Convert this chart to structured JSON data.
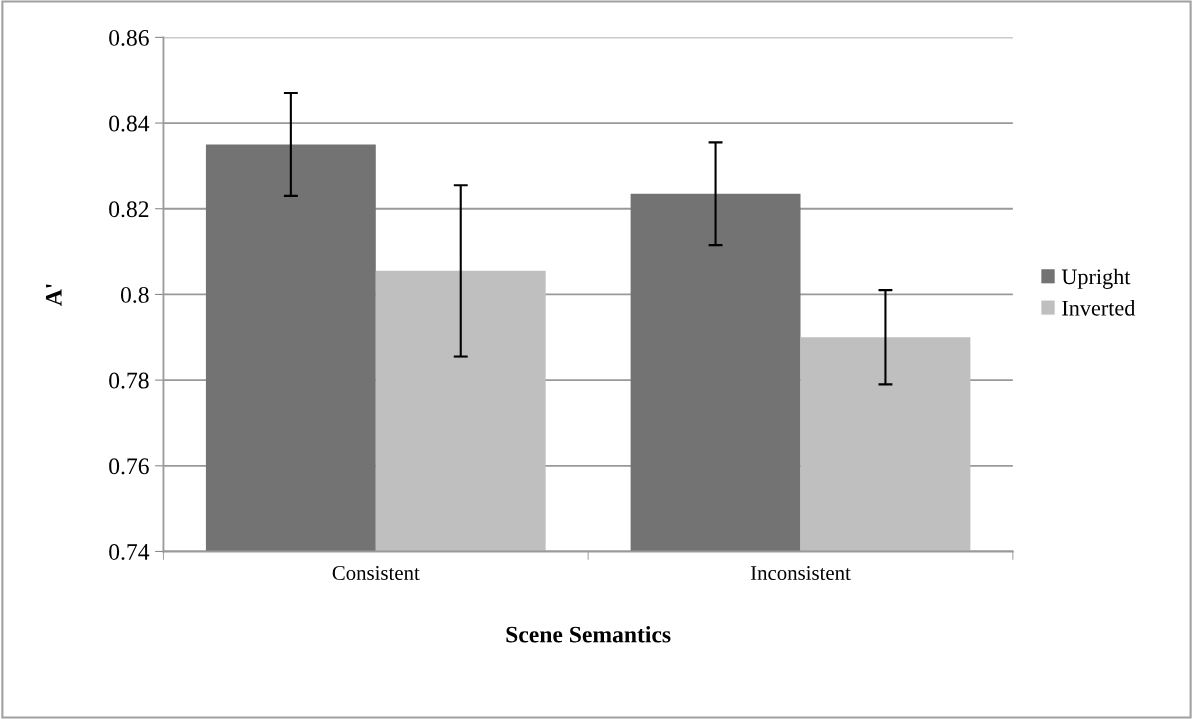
{
  "chart_data": {
    "type": "bar",
    "xlabel": "Scene Semantics",
    "ylabel": "A'",
    "categories": [
      "Consistent",
      "Inconsistent"
    ],
    "series": [
      {
        "name": "Upright",
        "color": "#737373",
        "values": [
          0.835,
          0.8235
        ],
        "errors": [
          0.012,
          0.012
        ]
      },
      {
        "name": "Inverted",
        "color": "#bfbfbf",
        "values": [
          0.8055,
          0.79
        ],
        "errors": [
          0.02,
          0.011
        ]
      }
    ],
    "ylim": [
      0.74,
      0.86
    ],
    "yticks": [
      0.74,
      0.76,
      0.78,
      {
        "value": 0.8,
        "label": "0.8"
      },
      0.82,
      0.84,
      0.86
    ],
    "grid": "y",
    "legend": "right"
  }
}
